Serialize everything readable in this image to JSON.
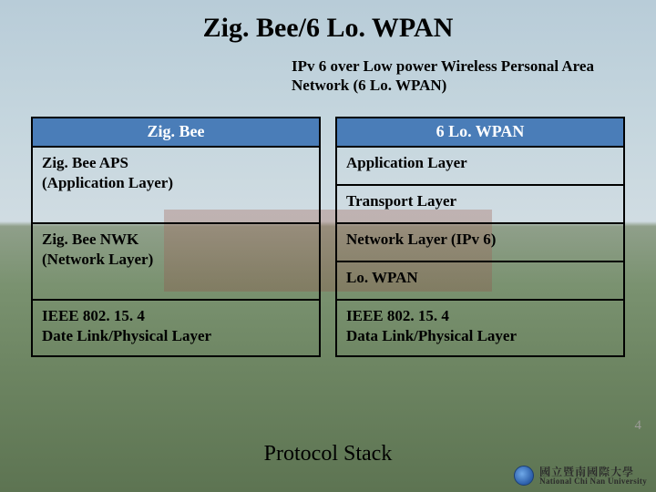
{
  "title": "Zig. Bee/6 Lo. WPAN",
  "subtitle": "IPv 6 over Low power Wireless Personal Area Network (6 Lo. WPAN)",
  "left": {
    "header": "Zig. Bee",
    "app": "Zig. Bee APS\n(Application Layer)",
    "nwk": "Zig. Bee NWK\n(Network Layer)",
    "phy": "IEEE 802. 15. 4\nDate Link/Physical Layer"
  },
  "right": {
    "header": "6 Lo. WPAN",
    "app": "Application Layer",
    "transport": "Transport Layer",
    "nwk": "Network Layer (IPv 6)",
    "lowpan": "Lo. WPAN",
    "phy": "IEEE 802. 15. 4\nData Link/Physical Layer"
  },
  "caption": "Protocol  Stack",
  "page_number": "4",
  "footer": {
    "cn": "國立暨南國際大學",
    "en": "National Chi Nan University"
  },
  "style": {
    "header_bg": "#4a7db8",
    "header_fg": "#ffffff",
    "border": "#000000",
    "title_fontsize": 30,
    "subtitle_fontsize": 17,
    "cell_fontsize": 17,
    "caption_fontsize": 24
  }
}
